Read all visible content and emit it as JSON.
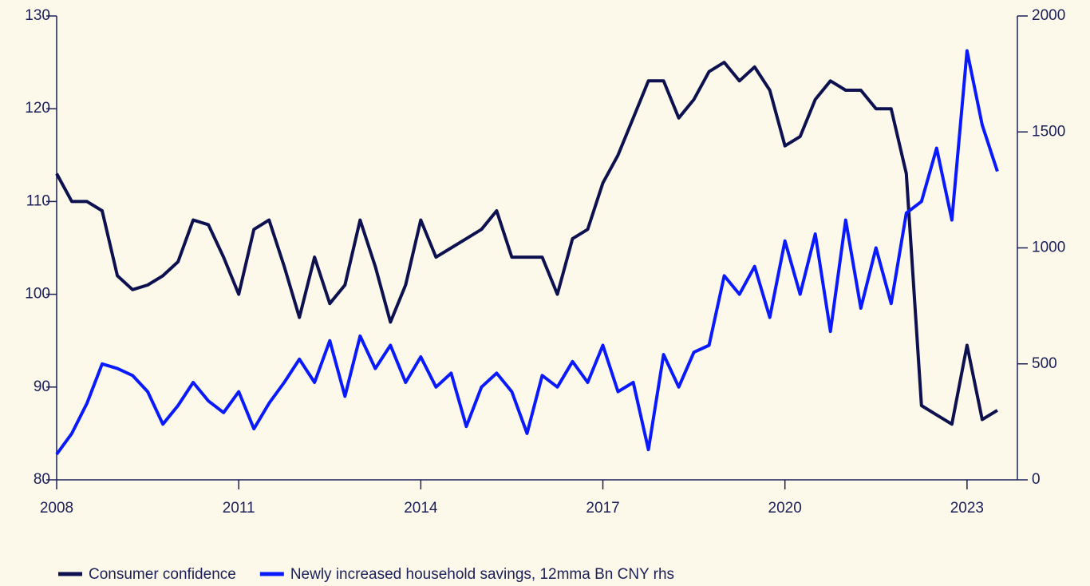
{
  "chart_data": {
    "type": "line",
    "x": [
      2008,
      2008.25,
      2008.5,
      2008.75,
      2009,
      2009.25,
      2009.5,
      2009.75,
      2010,
      2010.25,
      2010.5,
      2010.75,
      2011,
      2011.25,
      2011.5,
      2011.75,
      2012,
      2012.25,
      2012.5,
      2012.75,
      2013,
      2013.25,
      2013.5,
      2013.75,
      2014,
      2014.25,
      2014.5,
      2014.75,
      2015,
      2015.25,
      2015.5,
      2015.75,
      2016,
      2016.25,
      2016.5,
      2016.75,
      2017,
      2017.25,
      2017.5,
      2017.75,
      2018,
      2018.25,
      2018.5,
      2018.75,
      2019,
      2019.25,
      2019.5,
      2019.75,
      2020,
      2020.25,
      2020.5,
      2020.75,
      2021,
      2021.25,
      2021.5,
      2021.75,
      2022,
      2022.25,
      2022.5,
      2022.75,
      2023,
      2023.25,
      2023.5
    ],
    "xlim": [
      2008,
      2023.83
    ],
    "xticks": [
      2008,
      2011,
      2014,
      2017,
      2020,
      2023
    ],
    "ylim": [
      80,
      130
    ],
    "yticks": [
      80,
      90,
      100,
      110,
      120,
      130
    ],
    "y2lim": [
      0,
      2000
    ],
    "y2ticks": [
      0,
      500,
      1000,
      1500,
      2000
    ],
    "series": [
      {
        "name": "Consumer confidence",
        "color": "#0d1150",
        "values": [
          113,
          110,
          110,
          109,
          102,
          100.5,
          101,
          102,
          103.5,
          108,
          107.5,
          104,
          100,
          107,
          108,
          103,
          97.5,
          104,
          99,
          101,
          108,
          103,
          97,
          101,
          108,
          104,
          105,
          106,
          107,
          109,
          104,
          104,
          104,
          100,
          106,
          107,
          112,
          115,
          119,
          123,
          123,
          119,
          121,
          124,
          125,
          123,
          124.5,
          122,
          116,
          117,
          121,
          123,
          122,
          122,
          120,
          120,
          113,
          88,
          87,
          86,
          94.5,
          86.5,
          87.5
        ]
      },
      {
        "name": "Newly increased household savings, 12mma Bn CNY rhs",
        "color": "#0a1aff",
        "axis": "y2",
        "values": [
          110,
          200,
          330,
          500,
          480,
          450,
          380,
          240,
          320,
          420,
          340,
          290,
          380,
          220,
          330,
          420,
          520,
          420,
          600,
          360,
          620,
          480,
          580,
          420,
          530,
          400,
          460,
          230,
          400,
          460,
          380,
          200,
          450,
          400,
          510,
          420,
          580,
          380,
          420,
          130,
          540,
          400,
          550,
          580,
          880,
          800,
          920,
          700,
          1030,
          800,
          1060,
          640,
          1120,
          740,
          1000,
          760,
          1150,
          1200,
          1430,
          1120,
          1850,
          1530,
          1330
        ]
      }
    ]
  }
}
